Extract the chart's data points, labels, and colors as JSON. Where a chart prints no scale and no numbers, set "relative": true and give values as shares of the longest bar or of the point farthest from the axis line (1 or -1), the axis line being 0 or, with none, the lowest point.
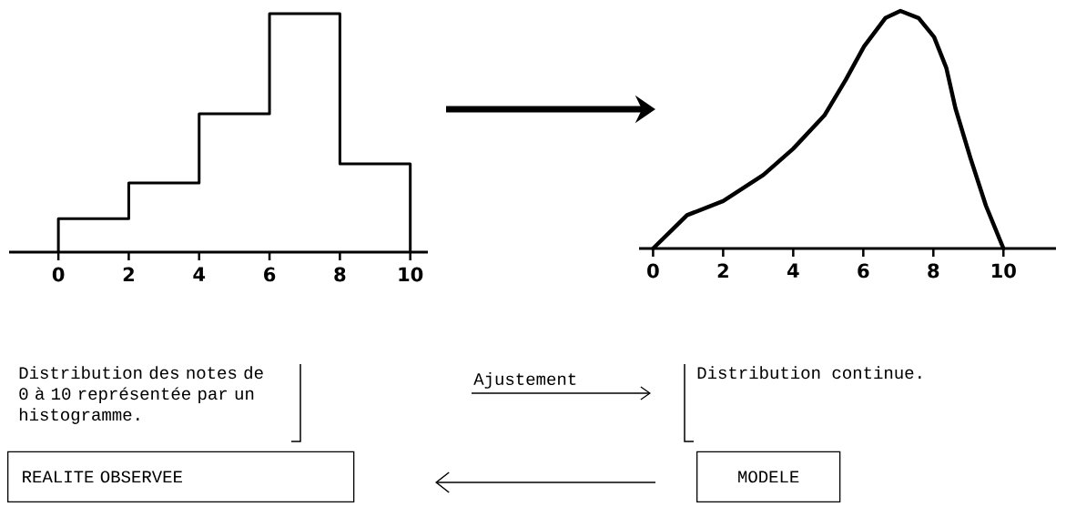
{
  "chart_data": [
    {
      "type": "step",
      "x": [
        0,
        0,
        2,
        4,
        6,
        8,
        10,
        10
      ],
      "values": [
        0,
        0.14,
        0.29,
        0.58,
        1,
        0.37,
        0.37,
        0
      ],
      "relative": true,
      "color": "#000000",
      "xlim": [
        -1.4,
        10.5
      ],
      "xticks": [
        0,
        2,
        4,
        6,
        8,
        10
      ],
      "annotations": [
        "Distribution des notes de 0 à 10 représentée par un histogramme.",
        "REALITE OBSERVEE"
      ]
    },
    {
      "type": "line",
      "x": [
        0,
        0.97,
        2.0,
        3.15,
        4.0,
        4.89,
        5.5,
        6.02,
        6.63,
        7.06,
        7.58,
        8.02,
        8.37,
        8.63,
        9.06,
        9.5,
        10
      ],
      "values": [
        0,
        0.14,
        0.2,
        0.31,
        0.42,
        0.56,
        0.71,
        0.85,
        0.97,
        1,
        0.97,
        0.89,
        0.76,
        0.59,
        0.38,
        0.18,
        0
      ],
      "relative": true,
      "color": "#000000",
      "xlim": [
        -0.4,
        11.5
      ],
      "xticks": [
        0,
        2,
        4,
        6,
        8,
        10
      ],
      "annotations": [
        "Ajustement",
        "Distribution continue.",
        "MODELE"
      ]
    }
  ]
}
